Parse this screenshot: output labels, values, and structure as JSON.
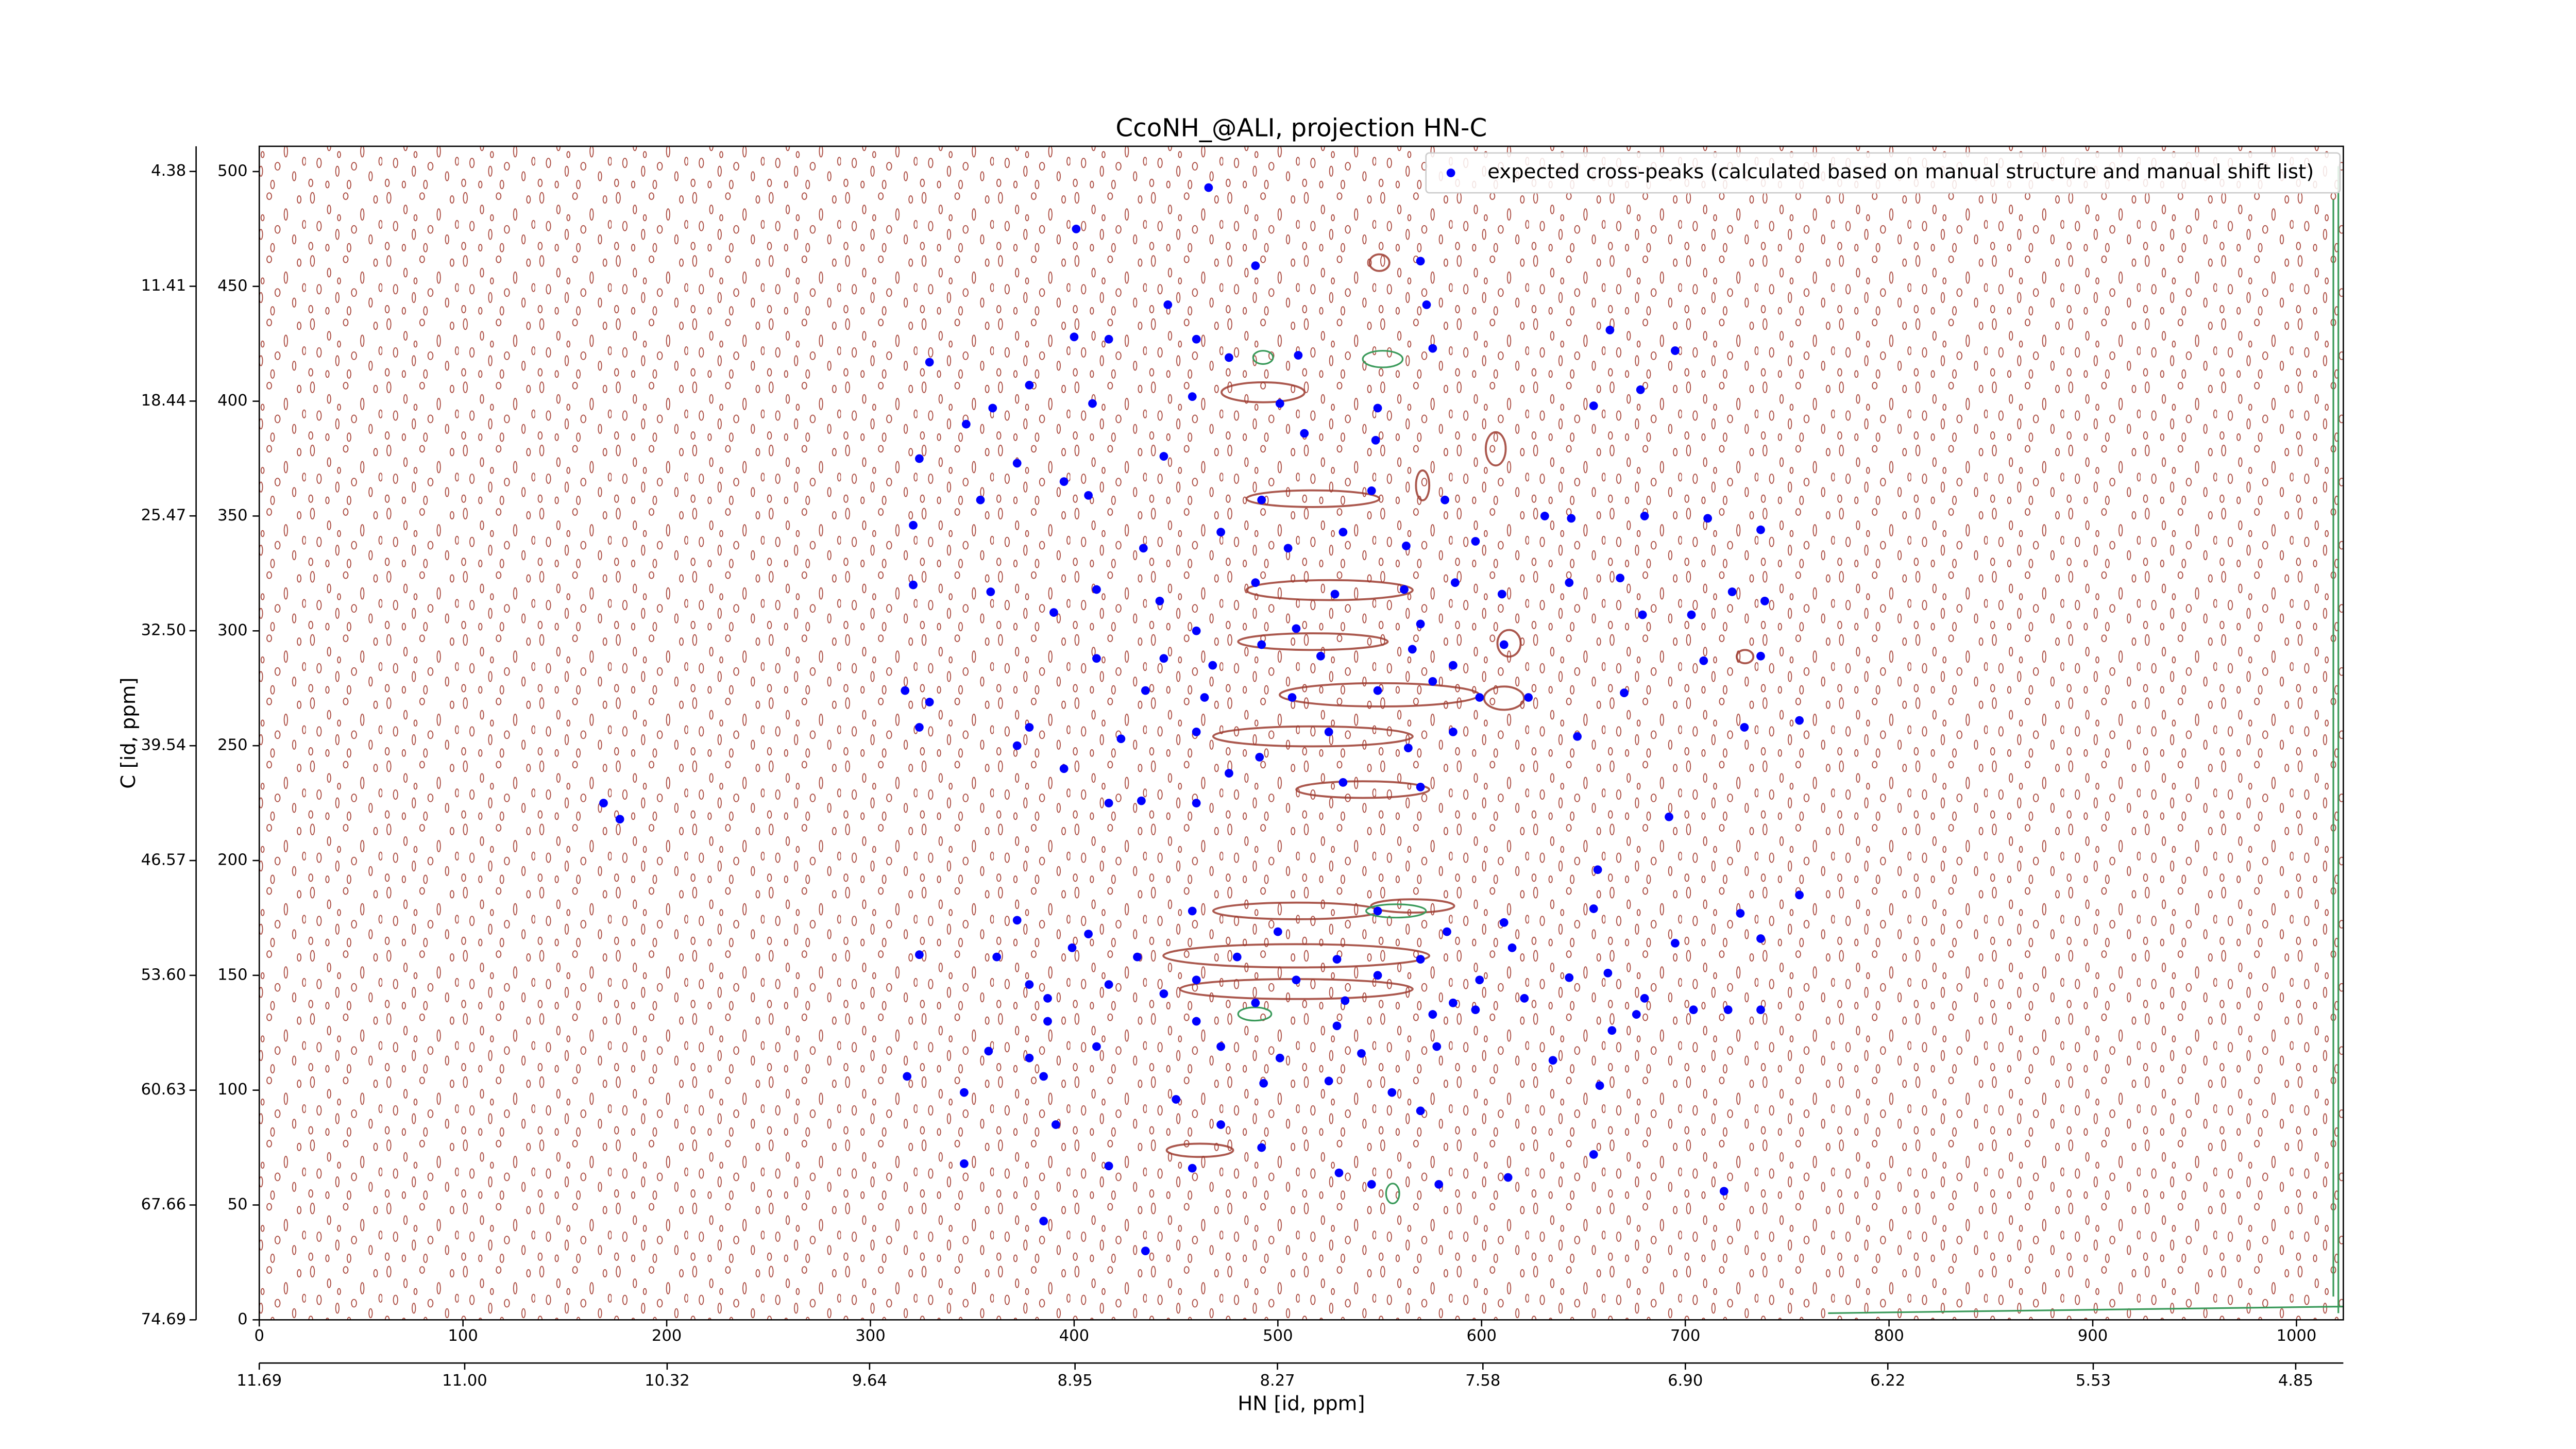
{
  "chart_data": {
    "type": "scatter",
    "title": "CcoNH_@ALI, projection HN-C",
    "xlabel": "HN [id, ppm]",
    "ylabel": "C [id, ppm]",
    "xlim": [
      0,
      1023
    ],
    "xticks": [
      0,
      100,
      200,
      300,
      400,
      500,
      600,
      700,
      800,
      900,
      1000
    ],
    "ylim": [
      0,
      511
    ],
    "yticks": [
      0,
      50,
      100,
      150,
      200,
      250,
      300,
      350,
      400,
      450,
      500
    ],
    "x2lim": [
      11.69,
      4.69
    ],
    "x2ticks": [
      11.69,
      {
        "value": 11.0,
        "label": "11.00"
      },
      10.32,
      9.64,
      8.95,
      8.27,
      7.58,
      {
        "value": 6.9,
        "label": "6.90"
      },
      6.22,
      5.53,
      4.85
    ],
    "y2lim": [
      74.69,
      2.84
    ],
    "y2ticks": [
      4.38,
      11.41,
      18.44,
      25.47,
      {
        "value": 32.5,
        "label": "32.50"
      },
      39.54,
      46.57,
      {
        "value": 53.6,
        "label": "53.60"
      },
      60.63,
      67.66,
      74.69
    ],
    "legend": "upper right",
    "series": [
      {
        "name": "expected cross-peaks (calculated based on manual structure and manual shift list)",
        "color": "#0000ff",
        "x": [
          466,
          401,
          489,
          570,
          573,
          446,
          400,
          417,
          460,
          476,
          510,
          576,
          663,
          695,
          329,
          378,
          360,
          409,
          458,
          501,
          549,
          655,
          678,
          347,
          324,
          372,
          513,
          548,
          395,
          444,
          354,
          407,
          492,
          546,
          582,
          631,
          321,
          434,
          472,
          505,
          532,
          563,
          597,
          644,
          680,
          711,
          737,
          359,
          321,
          411,
          442,
          489,
          528,
          562,
          587,
          610,
          643,
          668,
          723,
          739,
          390,
          460,
          509,
          570,
          703,
          679,
          411,
          444,
          468,
          492,
          521,
          566,
          586,
          611,
          709,
          737,
          317,
          329,
          378,
          435,
          464,
          507,
          549,
          576,
          599,
          623,
          670,
          324,
          372,
          423,
          460,
          491,
          525,
          564,
          586,
          647,
          729,
          756,
          395,
          476,
          532,
          570,
          417,
          433,
          460,
          169,
          177,
          692,
          657,
          756,
          727,
          372,
          407,
          458,
          500,
          549,
          583,
          611,
          655,
          324,
          362,
          399,
          431,
          480,
          529,
          570,
          615,
          695,
          737,
          378,
          417,
          460,
          509,
          549,
          599,
          643,
          662,
          387,
          444,
          489,
          533,
          586,
          621,
          680,
          676,
          704,
          721,
          737,
          387,
          460,
          529,
          576,
          597,
          664,
          358,
          378,
          411,
          472,
          501,
          541,
          578,
          635,
          318,
          346,
          385,
          450,
          493,
          525,
          556,
          570,
          658,
          391,
          472,
          492,
          655,
          346,
          417,
          458,
          530,
          579,
          613,
          719,
          385,
          435,
          546
        ],
        "values": [
          493,
          475,
          459,
          461,
          442,
          442,
          428,
          427,
          427,
          419,
          420,
          423,
          431,
          422,
          417,
          407,
          397,
          399,
          402,
          399,
          397,
          398,
          405,
          390,
          375,
          373,
          386,
          383,
          365,
          376,
          357,
          359,
          357,
          361,
          357,
          350,
          346,
          336,
          343,
          336,
          343,
          337,
          339,
          349,
          350,
          349,
          344,
          317,
          320,
          318,
          313,
          321,
          316,
          318,
          321,
          316,
          321,
          323,
          317,
          313,
          308,
          300,
          301,
          303,
          307,
          307,
          288,
          288,
          285,
          294,
          289,
          292,
          285,
          294,
          287,
          289,
          274,
          269,
          258,
          274,
          271,
          271,
          274,
          278,
          271,
          271,
          273,
          258,
          250,
          253,
          256,
          245,
          256,
          249,
          256,
          254,
          258,
          261,
          240,
          238,
          234,
          232,
          225,
          226,
          225,
          225,
          218,
          219,
          196,
          185,
          177,
          174,
          168,
          178,
          169,
          178,
          169,
          173,
          179,
          159,
          158,
          162,
          158,
          158,
          157,
          157,
          162,
          164,
          166,
          146,
          146,
          148,
          148,
          150,
          148,
          149,
          151,
          140,
          142,
          138,
          139,
          138,
          140,
          140,
          133,
          135,
          135,
          135,
          130,
          130,
          128,
          133,
          135,
          126,
          117,
          114,
          119,
          119,
          114,
          116,
          119,
          113,
          106,
          99,
          106,
          96,
          103,
          104,
          99,
          91,
          102,
          85,
          85,
          75,
          72,
          68,
          67,
          66,
          64,
          59,
          62,
          56,
          43,
          30,
          59
        ]
      }
    ]
  }
}
